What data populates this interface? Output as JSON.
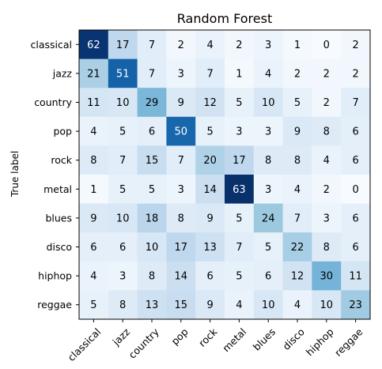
{
  "chart_data": {
    "type": "heatmap",
    "title": "Random Forest",
    "xlabel": "",
    "ylabel": "True label",
    "x_categories": [
      "classical",
      "jazz",
      "country",
      "pop",
      "rock",
      "metal",
      "blues",
      "disco",
      "hiphop",
      "reggae"
    ],
    "y_categories": [
      "classical",
      "jazz",
      "country",
      "pop",
      "rock",
      "metal",
      "blues",
      "disco",
      "hiphop",
      "reggae"
    ],
    "matrix": [
      [
        62,
        17,
        7,
        2,
        4,
        2,
        3,
        1,
        0,
        2
      ],
      [
        21,
        51,
        7,
        3,
        7,
        1,
        4,
        2,
        2,
        2
      ],
      [
        11,
        10,
        29,
        9,
        12,
        5,
        10,
        5,
        2,
        7
      ],
      [
        4,
        5,
        6,
        50,
        5,
        3,
        3,
        9,
        8,
        6
      ],
      [
        8,
        7,
        15,
        7,
        20,
        17,
        8,
        8,
        4,
        6
      ],
      [
        1,
        5,
        5,
        3,
        14,
        63,
        3,
        4,
        2,
        0
      ],
      [
        9,
        10,
        18,
        8,
        9,
        5,
        24,
        7,
        3,
        6
      ],
      [
        6,
        6,
        10,
        17,
        13,
        7,
        5,
        22,
        8,
        6
      ],
      [
        4,
        3,
        8,
        14,
        6,
        5,
        6,
        12,
        30,
        11
      ],
      [
        5,
        8,
        13,
        15,
        9,
        4,
        10,
        4,
        10,
        23
      ]
    ],
    "colormap": "Blues",
    "value_range": [
      0,
      63
    ],
    "grid": false,
    "legend": "none",
    "colors": {
      "low": "#f7fbff",
      "high": "#08306b",
      "text_dark": "#000000",
      "text_light": "#ffffff"
    }
  }
}
